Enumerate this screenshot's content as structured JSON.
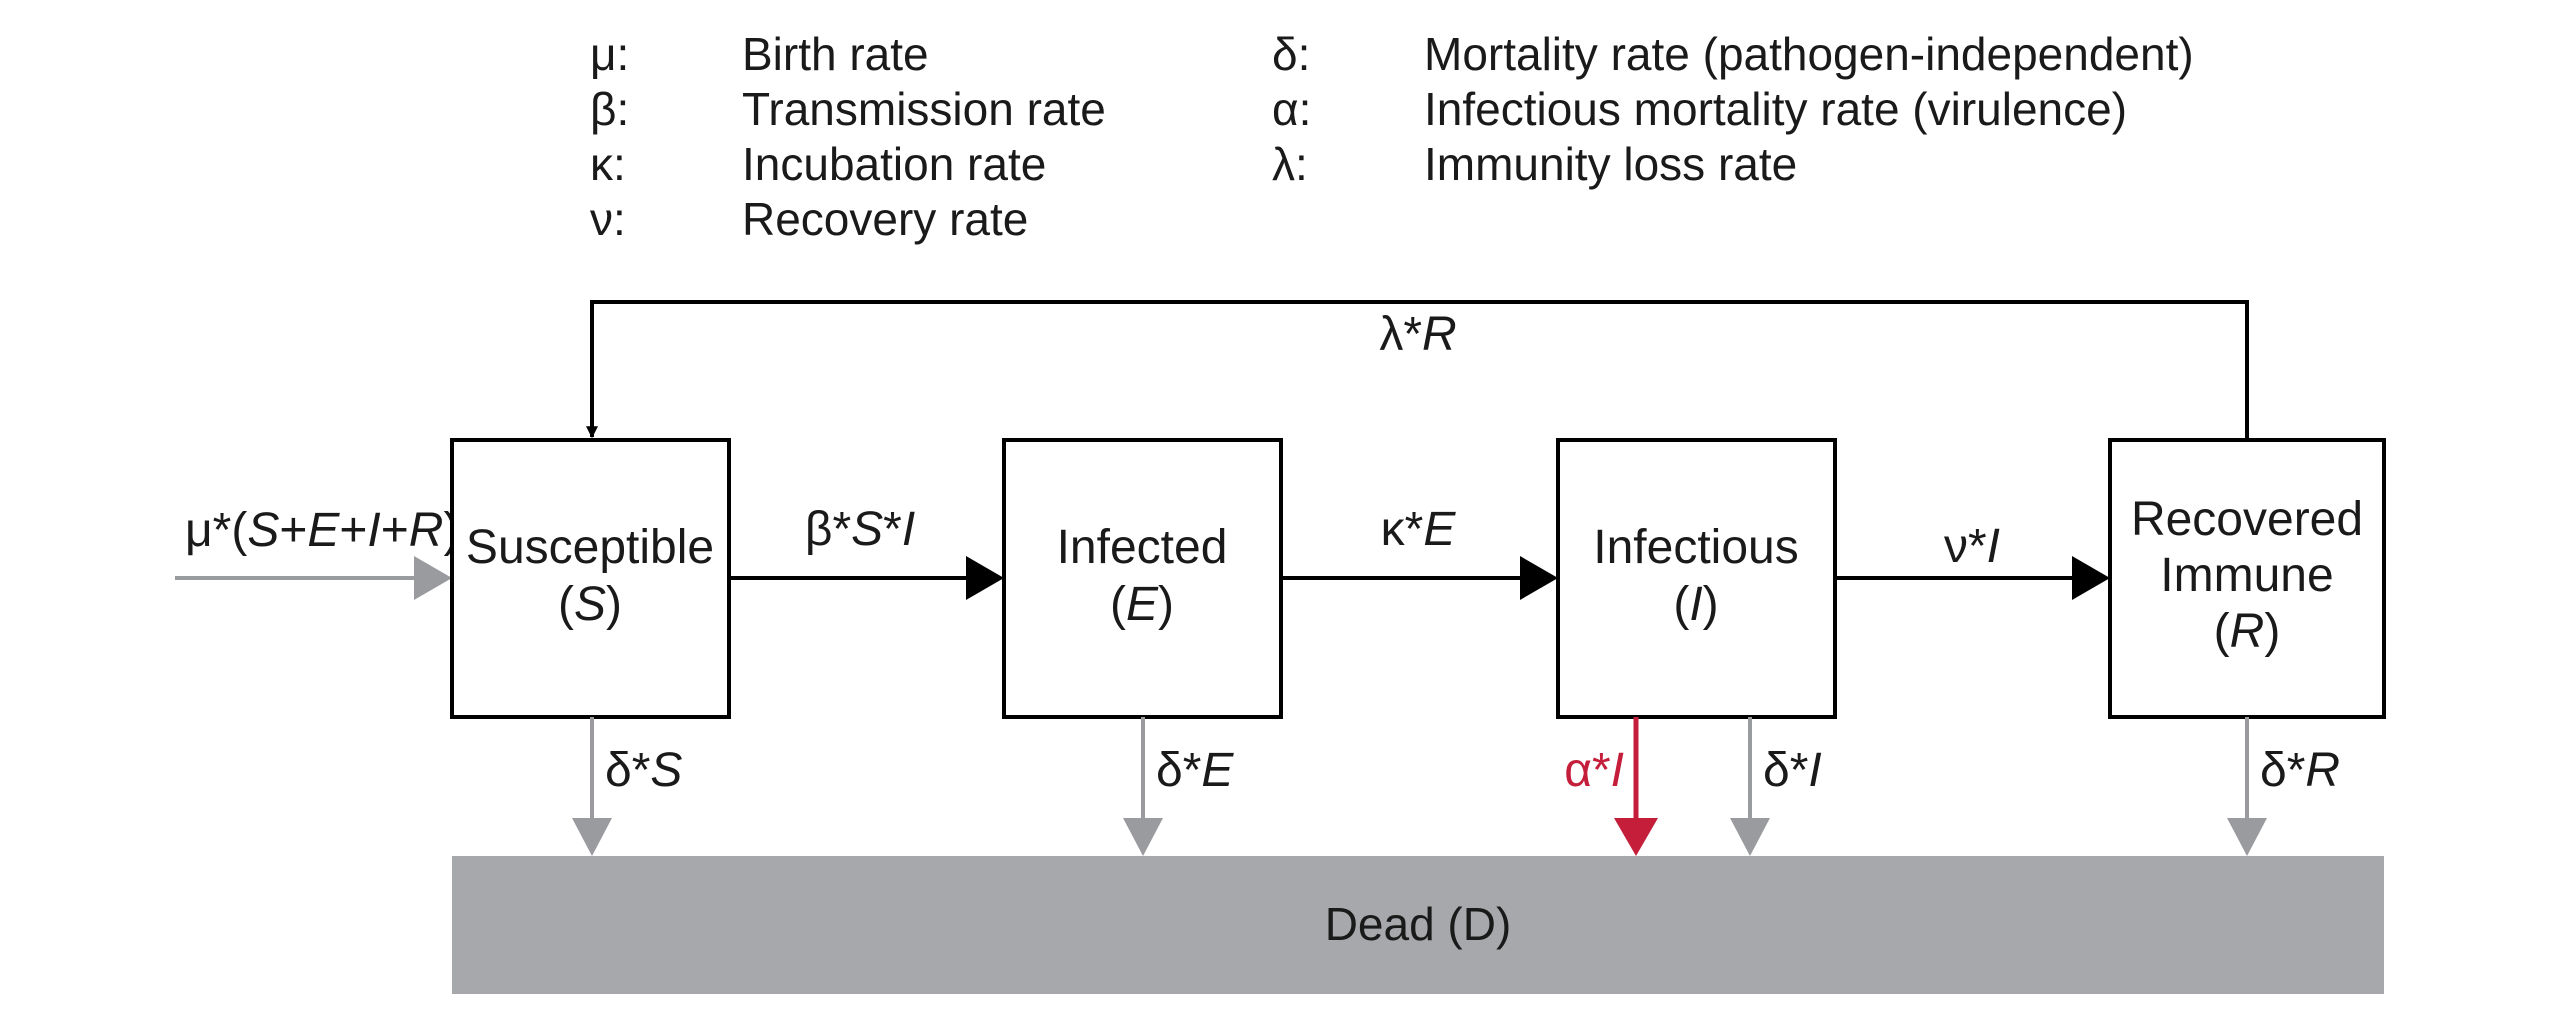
{
  "legend": [
    {
      "symbol": "μ:",
      "description": "Birth rate"
    },
    {
      "symbol": "β:",
      "description": "Transmission rate"
    },
    {
      "symbol": "κ:",
      "description": "Incubation rate"
    },
    {
      "symbol": "ν:",
      "description": "Recovery rate"
    },
    {
      "symbol": "δ:",
      "description": "Mortality rate (pathogen-independent)"
    },
    {
      "symbol": "α:",
      "description": "Infectious mortality rate (virulence)"
    },
    {
      "symbol": "λ:",
      "description": "Immunity loss rate"
    }
  ],
  "compartments": {
    "susceptible": {
      "name": "Susceptible",
      "symbol": "S"
    },
    "infected": {
      "name": "Infected",
      "symbol": "E"
    },
    "infectious": {
      "name": "Infectious",
      "symbol": "I"
    },
    "recovered": {
      "name_line1": "Recovered",
      "name_line2": "Immune",
      "symbol": "R"
    },
    "dead": {
      "label": "Dead (D)"
    }
  },
  "flows": {
    "birth": {
      "prefix": "μ*(",
      "S": "S",
      "plus1": "+",
      "E": "E",
      "plus2": "+",
      "I": "I",
      "plus3": "+",
      "R": "R",
      "suffix": ")"
    },
    "transmission": {
      "prefix": "β*",
      "var1": "S",
      "mid": "*",
      "var2": "I"
    },
    "incubation": {
      "prefix": "κ*",
      "var": "E"
    },
    "recovery": {
      "prefix": "ν*",
      "var": "I"
    },
    "immunity_loss": {
      "prefix": "λ*",
      "var": "R"
    },
    "death_S": {
      "prefix": "δ*",
      "var": "S"
    },
    "death_E": {
      "prefix": "δ*",
      "var": "E"
    },
    "death_I_virulence": {
      "prefix": "α*",
      "var": "I"
    },
    "death_I": {
      "prefix": "δ*",
      "var": "I"
    },
    "death_R": {
      "prefix": "δ*",
      "var": "R"
    }
  },
  "colors": {
    "black": "#000000",
    "gray_arrow": "#9a9b9f",
    "dead_fill": "#a7a8ab",
    "virulence_red": "#c41e3a"
  }
}
